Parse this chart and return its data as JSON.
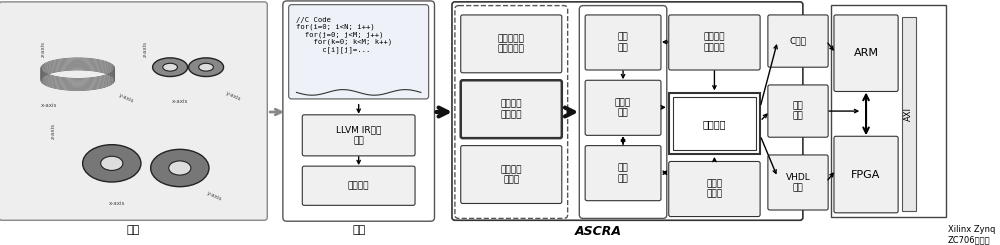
{
  "bg_color": "#ffffff",
  "fig_width": 10.0,
  "fig_height": 2.45,
  "app_label": "应用",
  "frontend_label": "前端",
  "ascra_label": "ASCRA",
  "xilinx_label": "Xilinx Zynq\nZC706验证板",
  "code_box_text": "//C Code\nfor(i=0; i<N; i++)\n  for(j=0; j<M; j++)\n    for(k=0; k<M; k++)\n      c[i][j]=...",
  "frontend_boxes": [
    "LLVM IR中间\n代码",
    "代码优化"
  ],
  "analysis_boxes": [
    "数据依赖关\n系分析模型",
    "启动间距\n自动分析",
    "流水线划\n分模型"
  ],
  "ascra_left_boxes": [
    "性能\n评估",
    "软硬件\n划分",
    "资源\n评估"
  ],
  "ascra_mid_top": "并行编译\n优化技术",
  "ascra_mid_center": "代码生成",
  "ascra_mid_bot": "并行存\n储模型",
  "output_boxes": [
    "C程序",
    "接口\n驱动",
    "VHDL\n代码"
  ],
  "hw_boxes": [
    "ARM",
    "FPGA"
  ],
  "axi_label": "AXI"
}
